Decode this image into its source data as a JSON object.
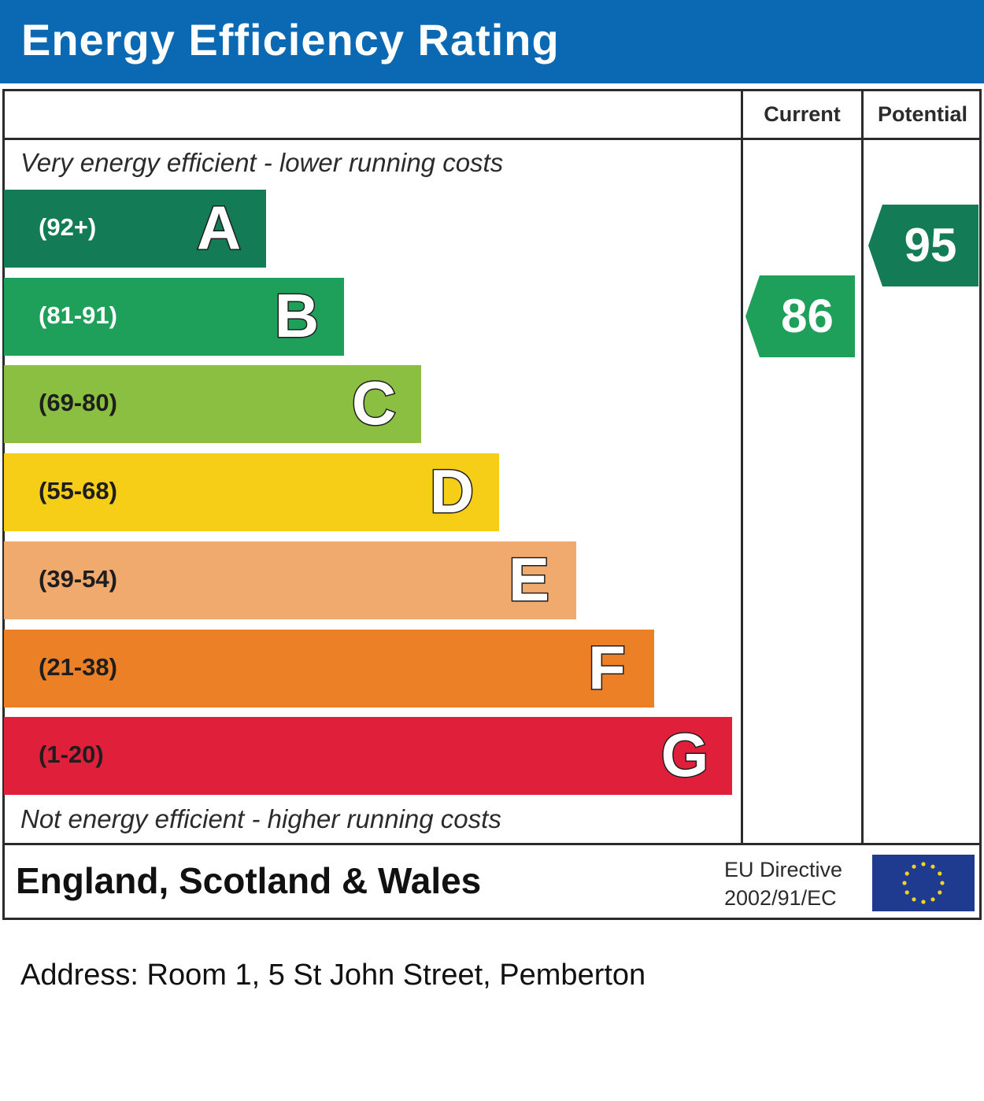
{
  "title": "Energy Efficiency Rating",
  "headers": {
    "current": "Current",
    "potential": "Potential"
  },
  "top_caption": "Very energy efficient - lower running costs",
  "bottom_caption": "Not energy efficient - higher running costs",
  "region": "England, Scotland & Wales",
  "eu_directive": {
    "line1": "EU Directive",
    "line2": "2002/91/EC"
  },
  "address": "Address: Room 1, 5 St John Street, Pemberton",
  "chart_data": {
    "type": "bar",
    "title": "Energy Efficiency Rating",
    "categories": [
      "A",
      "B",
      "C",
      "D",
      "E",
      "F",
      "G"
    ],
    "ranges": [
      "(92+)",
      "(81-91)",
      "(69-80)",
      "(55-68)",
      "(39-54)",
      "(21-38)",
      "(1-20)"
    ],
    "colors": [
      "#137c57",
      "#1ea05a",
      "#8bbf41",
      "#f6ce18",
      "#f1aa6e",
      "#ec8026",
      "#e0203b"
    ],
    "range_text_colors": [
      "#ffffff",
      "#ffffff",
      "#1e1e1e",
      "#1e1e1e",
      "#1e1e1e",
      "#1e1e1e",
      "#1e1e1e"
    ],
    "ratings": [
      {
        "name": "Current",
        "value": 86,
        "band": "B",
        "color": "#1ea05a"
      },
      {
        "name": "Potential",
        "value": 95,
        "band": "A",
        "color": "#137c57"
      }
    ]
  }
}
